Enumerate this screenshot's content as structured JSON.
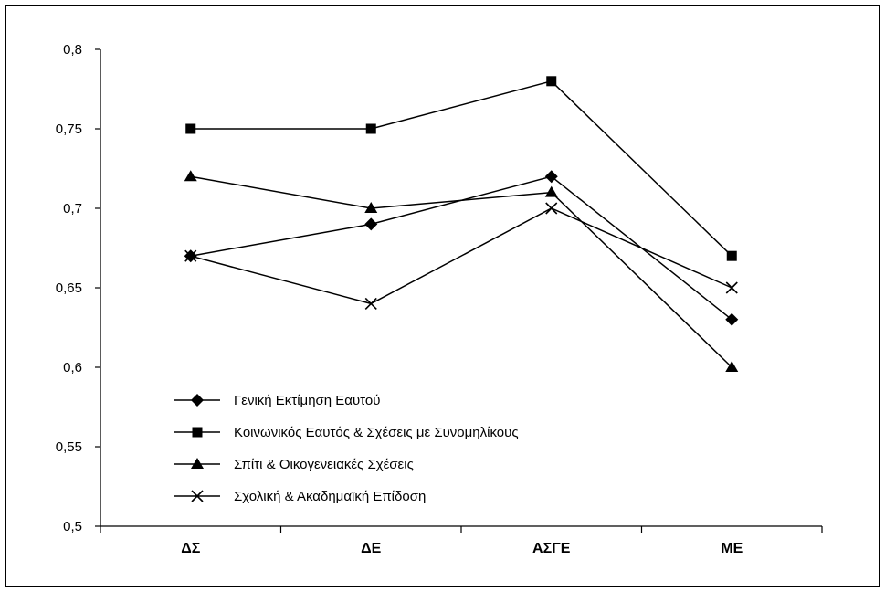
{
  "chart_data": {
    "type": "line",
    "title": "",
    "xlabel": "",
    "ylabel": "",
    "categories": [
      "ΔΣ",
      "ΔΕ",
      "ΑΣΓΕ",
      "ΜΕ"
    ],
    "ylim": [
      0.5,
      0.8
    ],
    "yticks": [
      0.5,
      0.55,
      0.6,
      0.65,
      0.7,
      0.75,
      0.8
    ],
    "ytick_labels": [
      "0,5",
      "0,55",
      "0,6",
      "0,65",
      "0,7",
      "0,75",
      "0,8"
    ],
    "grid": false,
    "legend_position": "bottom-left",
    "series": [
      {
        "name": "Γενική Εκτίμηση Εαυτού",
        "marker": "diamond",
        "values": [
          0.67,
          0.69,
          0.72,
          0.63
        ]
      },
      {
        "name": "Κοινωνικός Εαυτός & Σχέσεις με Συνομηλίκους",
        "marker": "square",
        "values": [
          0.75,
          0.75,
          0.78,
          0.67
        ]
      },
      {
        "name": "Σπίτι & Οικογενειακές Σχέσεις",
        "marker": "triangle",
        "values": [
          0.72,
          0.7,
          0.71,
          0.6
        ]
      },
      {
        "name": "Σχολική & Ακαδημαϊκή Επίδοση",
        "marker": "x",
        "values": [
          0.67,
          0.64,
          0.7,
          0.65
        ]
      }
    ],
    "colors": {
      "line": "#000000",
      "marker": "#000000"
    }
  }
}
